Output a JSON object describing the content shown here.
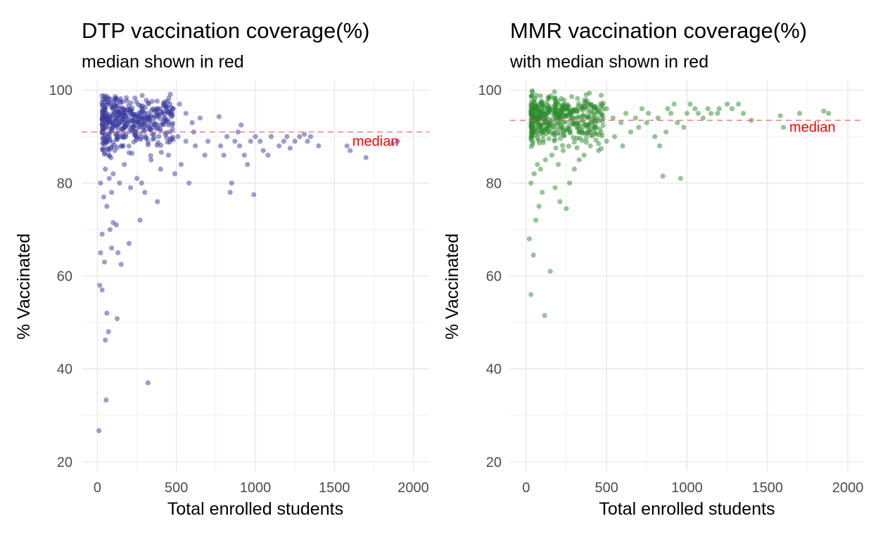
{
  "chart_data": [
    {
      "type": "scatter",
      "title": "DTP vaccination coverage(%)",
      "subtitle": "median shown in red",
      "xlabel": "Total enrolled students",
      "ylabel": "% Vaccinated",
      "xlim": [
        -100,
        2100
      ],
      "ylim": [
        18,
        102
      ],
      "xticks": [
        "0",
        "500",
        "1000",
        "1500",
        "2000"
      ],
      "yticks": [
        "20",
        "40",
        "60",
        "80",
        "100"
      ],
      "xtick_values": [
        0,
        500,
        1000,
        1500,
        2000
      ],
      "ytick_values": [
        20,
        40,
        60,
        80,
        100
      ],
      "grid": true,
      "point_color": "#3b3b9e",
      "median": 91,
      "median_color": "#e05a5a",
      "median_label": "median",
      "median_label_at": [
        1760,
        88
      ],
      "points": [
        [
          10,
          26.7
        ],
        [
          20,
          65
        ],
        [
          15,
          58
        ],
        [
          30,
          57
        ],
        [
          50,
          46.2
        ],
        [
          55,
          33.3
        ],
        [
          60,
          52
        ],
        [
          45,
          63
        ],
        [
          70,
          48
        ],
        [
          80,
          70
        ],
        [
          90,
          66
        ],
        [
          100,
          71.5
        ],
        [
          120,
          71
        ],
        [
          130,
          65
        ],
        [
          125,
          50.8
        ],
        [
          150,
          62.5
        ],
        [
          200,
          67
        ],
        [
          320,
          37
        ],
        [
          270,
          72
        ],
        [
          380,
          76
        ],
        [
          30,
          69
        ],
        [
          60,
          75
        ],
        [
          40,
          77
        ],
        [
          90,
          78
        ],
        [
          20,
          80
        ],
        [
          50,
          83
        ],
        [
          75,
          81
        ],
        [
          100,
          82
        ],
        [
          140,
          80
        ],
        [
          170,
          84
        ],
        [
          210,
          79
        ],
        [
          250,
          81
        ],
        [
          280,
          80
        ],
        [
          300,
          78
        ],
        [
          340,
          85
        ],
        [
          400,
          83
        ],
        [
          450,
          86
        ],
        [
          490,
          82
        ],
        [
          530,
          84
        ],
        [
          580,
          80
        ],
        [
          620,
          88
        ],
        [
          680,
          86
        ],
        [
          700,
          89
        ],
        [
          770,
          94.3
        ],
        [
          780,
          88
        ],
        [
          800,
          86
        ],
        [
          820,
          90
        ],
        [
          840,
          78
        ],
        [
          850,
          80
        ],
        [
          870,
          89
        ],
        [
          890,
          91
        ],
        [
          900,
          88
        ],
        [
          910,
          92.5
        ],
        [
          930,
          86
        ],
        [
          950,
          84
        ],
        [
          970,
          89
        ],
        [
          990,
          77.5
        ],
        [
          1000,
          90
        ],
        [
          1030,
          89
        ],
        [
          1050,
          87
        ],
        [
          1080,
          86
        ],
        [
          1100,
          90
        ],
        [
          1150,
          88
        ],
        [
          1180,
          89
        ],
        [
          1200,
          90
        ],
        [
          1220,
          87.5
        ],
        [
          1250,
          89
        ],
        [
          1280,
          90
        ],
        [
          1310,
          90.5
        ],
        [
          1330,
          89
        ],
        [
          1350,
          90
        ],
        [
          1400,
          88
        ],
        [
          1580,
          88
        ],
        [
          1600,
          87
        ],
        [
          1700,
          85.5
        ],
        [
          1870,
          88.5
        ],
        [
          1900,
          89
        ],
        [
          70,
          86
        ],
        [
          110,
          87
        ],
        [
          150,
          88
        ],
        [
          180,
          90
        ],
        [
          220,
          92
        ],
        [
          260,
          93
        ],
        [
          300,
          95
        ],
        [
          350,
          96
        ],
        [
          420,
          97
        ],
        [
          480,
          96
        ],
        [
          520,
          97
        ],
        [
          560,
          95
        ],
        [
          600,
          93
        ],
        [
          650,
          94
        ],
        [
          460,
          91
        ],
        [
          510,
          90
        ],
        [
          560,
          89
        ],
        [
          610,
          91
        ]
      ],
      "dense_cluster": {
        "x": [
          30,
          480
        ],
        "y": [
          85,
          99.5
        ],
        "count": 420,
        "seed": 7
      }
    },
    {
      "type": "scatter",
      "title": "MMR vaccination coverage(%)",
      "subtitle": "with median shown in red",
      "xlabel": "Total enrolled students",
      "ylabel": "% Vaccinated",
      "xlim": [
        -100,
        2100
      ],
      "ylim": [
        18,
        102
      ],
      "xticks": [
        "0",
        "500",
        "1000",
        "1500",
        "2000"
      ],
      "yticks": [
        "20",
        "40",
        "60",
        "80",
        "100"
      ],
      "xtick_values": [
        0,
        500,
        1000,
        1500,
        2000
      ],
      "ytick_values": [
        20,
        40,
        60,
        80,
        100
      ],
      "grid": true,
      "point_color": "#2e8b2e",
      "median": 93.5,
      "median_color": "#e05a5a",
      "median_label": "median",
      "median_label_at": [
        1780,
        91
      ],
      "points": [
        [
          20,
          68
        ],
        [
          30,
          56
        ],
        [
          45,
          64.5
        ],
        [
          60,
          72
        ],
        [
          80,
          75
        ],
        [
          100,
          78
        ],
        [
          115,
          51.5
        ],
        [
          150,
          61
        ],
        [
          180,
          79
        ],
        [
          210,
          76
        ],
        [
          250,
          74.5
        ],
        [
          270,
          80
        ],
        [
          30,
          80
        ],
        [
          50,
          82
        ],
        [
          70,
          84
        ],
        [
          90,
          83
        ],
        [
          120,
          85
        ],
        [
          160,
          86
        ],
        [
          200,
          84
        ],
        [
          230,
          87
        ],
        [
          300,
          83
        ],
        [
          330,
          85
        ],
        [
          360,
          86
        ],
        [
          400,
          88
        ],
        [
          450,
          87
        ],
        [
          500,
          89
        ],
        [
          550,
          90
        ],
        [
          600,
          88
        ],
        [
          650,
          91
        ],
        [
          700,
          92
        ],
        [
          750,
          93
        ],
        [
          800,
          90
        ],
        [
          830,
          88
        ],
        [
          850,
          81.5
        ],
        [
          870,
          91
        ],
        [
          900,
          95
        ],
        [
          920,
          97
        ],
        [
          960,
          81
        ],
        [
          980,
          92
        ],
        [
          1000,
          95
        ],
        [
          1050,
          96
        ],
        [
          1100,
          94
        ],
        [
          1150,
          95
        ],
        [
          1200,
          96
        ],
        [
          1250,
          97
        ],
        [
          1280,
          96
        ],
        [
          1320,
          97
        ],
        [
          1350,
          95
        ],
        [
          1400,
          93.5
        ],
        [
          1580,
          94.5
        ],
        [
          1600,
          92
        ],
        [
          1700,
          95
        ],
        [
          1850,
          95.5
        ],
        [
          1880,
          95
        ],
        [
          500,
          96
        ],
        [
          540,
          94
        ],
        [
          590,
          93
        ],
        [
          620,
          95
        ],
        [
          680,
          94
        ],
        [
          720,
          96
        ],
        [
          760,
          95
        ],
        [
          820,
          94
        ],
        [
          880,
          96
        ],
        [
          940,
          93
        ],
        [
          1020,
          97
        ],
        [
          1070,
          95
        ],
        [
          1130,
          96
        ],
        [
          1190,
          95
        ]
      ],
      "dense_cluster": {
        "x": [
          30,
          480
        ],
        "y": [
          87,
          100
        ],
        "count": 440,
        "seed": 11
      }
    }
  ]
}
